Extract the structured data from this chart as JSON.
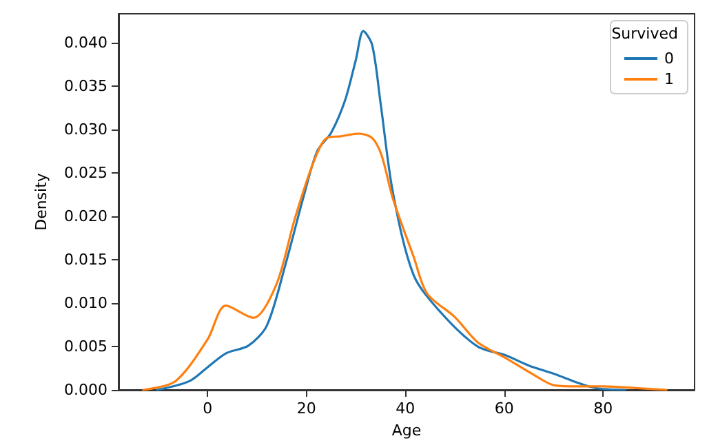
{
  "chart_data": {
    "type": "line",
    "xlabel": "Age",
    "ylabel": "Density",
    "legend_title": "Survived",
    "legend": "top right",
    "grid": false,
    "marker": "none",
    "line_style": "solid",
    "xlim": [
      -18,
      98.5
    ],
    "xticks": [
      0,
      20,
      40,
      60,
      80
    ],
    "ylim": [
      0,
      0.0433
    ],
    "yticks": [
      {
        "value": 0,
        "label": "0.000"
      },
      {
        "value": 0.005,
        "label": "0.005"
      },
      {
        "value": 0.01,
        "label": "0.010"
      },
      {
        "value": 0.015,
        "label": "0.015"
      },
      {
        "value": 0.02,
        "label": "0.020"
      },
      {
        "value": 0.025,
        "label": "0.025"
      },
      {
        "value": 0.03,
        "label": "0.030"
      },
      {
        "value": 0.035,
        "label": "0.035"
      },
      {
        "value": 0.04,
        "label": "0.040"
      }
    ],
    "series": [
      {
        "name": "0",
        "color": "#1f77b4",
        "x": [
          -10.2,
          -3.7,
          0,
          3.7,
          8.3,
          12,
          15.7,
          19.4,
          22.2,
          25,
          27.8,
          30,
          31.5,
          33.3,
          35,
          37.5,
          41.7,
          47.2,
          54.6,
          60.2,
          65,
          70.3,
          74,
          77.8,
          80,
          84.4
        ],
        "values": [
          0,
          0.001,
          0.0026,
          0.0042,
          0.0051,
          0.0074,
          0.0143,
          0.0222,
          0.0275,
          0.0296,
          0.0333,
          0.038,
          0.0413,
          0.0397,
          0.033,
          0.0227,
          0.0132,
          0.0089,
          0.005,
          0.004,
          0.0028,
          0.0018,
          0.001,
          0.0003,
          0.0001,
          0
        ]
      },
      {
        "name": "1",
        "color": "#ff7f0e",
        "x": [
          -13,
          -6.5,
          0,
          3.7,
          9.3,
          13.9,
          17.6,
          21.3,
          24.1,
          27,
          30.6,
          33.3,
          35.2,
          37.5,
          41.7,
          44.4,
          50,
          54.6,
          60.2,
          65.8,
          70.3,
          75,
          80,
          87,
          92.8
        ],
        "values": [
          0,
          0.001,
          0.0058,
          0.0097,
          0.0083,
          0.0121,
          0.0196,
          0.026,
          0.029,
          0.0292,
          0.0295,
          0.029,
          0.027,
          0.022,
          0.0153,
          0.0111,
          0.0084,
          0.0055,
          0.0037,
          0.0018,
          0.0005,
          0.0004,
          0.0004,
          0.0002,
          0
        ]
      }
    ]
  }
}
